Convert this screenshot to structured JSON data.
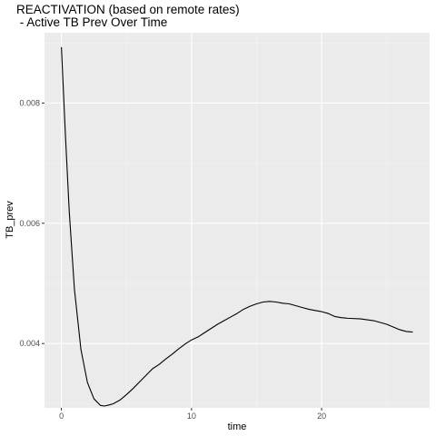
{
  "chart_data": {
    "type": "line",
    "title_line1": "REACTIVATION (based on remote rates)",
    "title_line2": " - Active TB Prev Over Time",
    "xlabel": "time",
    "ylabel": "TB_prev",
    "xlim": [
      -1.3,
      28.3
    ],
    "ylim": [
      0.00293,
      0.00917
    ],
    "x_ticks": [
      0,
      10,
      20
    ],
    "x_tick_labels": [
      "0",
      "10",
      "20"
    ],
    "y_ticks": [
      0.004,
      0.006,
      0.008
    ],
    "y_tick_labels": [
      "0.004",
      "0.006",
      "0.008"
    ],
    "grid": true,
    "series": [
      {
        "x": [
          0,
          0.3,
          0.6,
          1.0,
          1.5,
          2.0,
          2.5,
          3.0,
          3.3,
          3.7,
          4.0,
          4.5,
          5.0,
          5.5,
          6.0,
          6.5,
          7.0,
          7.5,
          8.0,
          8.5,
          9.0,
          9.5,
          10.0,
          10.5,
          11.0,
          11.5,
          12.0,
          12.5,
          13.0,
          13.5,
          14.0,
          14.5,
          15.0,
          15.5,
          16.0,
          16.5,
          17.0,
          17.5,
          18.0,
          18.5,
          19.0,
          19.5,
          20.0,
          20.5,
          21.0,
          21.5,
          22.0,
          23.0,
          24.0,
          25.0,
          26.0,
          26.5,
          27.0
        ],
        "y": [
          0.00893,
          0.0075,
          0.0062,
          0.0049,
          0.0039,
          0.00335,
          0.00308,
          0.00297,
          0.00296,
          0.00298,
          0.003,
          0.00306,
          0.00315,
          0.00325,
          0.00336,
          0.00347,
          0.00358,
          0.00365,
          0.00374,
          0.00382,
          0.00391,
          0.00399,
          0.00406,
          0.00411,
          0.00418,
          0.00425,
          0.00432,
          0.00438,
          0.00444,
          0.0045,
          0.00457,
          0.00462,
          0.00466,
          0.00469,
          0.0047,
          0.00469,
          0.00467,
          0.00466,
          0.00463,
          0.0046,
          0.00457,
          0.00455,
          0.00453,
          0.0045,
          0.00445,
          0.00443,
          0.00442,
          0.00441,
          0.00438,
          0.00432,
          0.00423,
          0.0042,
          0.00419
        ]
      }
    ]
  }
}
